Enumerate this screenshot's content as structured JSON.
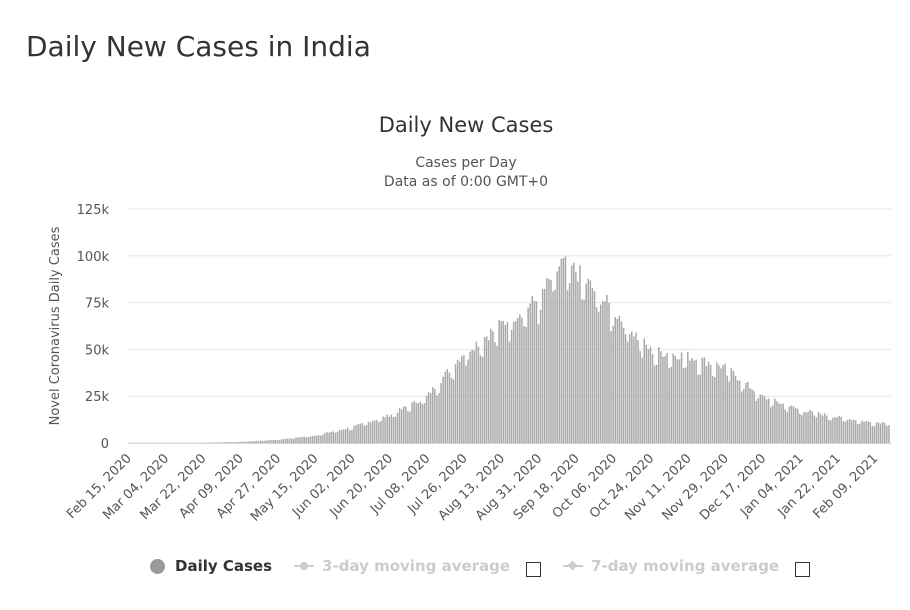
{
  "page": {
    "heading": "Daily New Cases in India"
  },
  "chart_data": {
    "type": "bar",
    "title": "Daily New Cases",
    "subtitle_lines": [
      "Cases per Day",
      "Data as of 0:00 GMT+0"
    ],
    "ylabel": "Novel Coronavirus Daily Cases",
    "xlabel": "",
    "ylim": [
      0,
      125000
    ],
    "y_ticks": [
      0,
      25000,
      50000,
      75000,
      100000,
      125000
    ],
    "y_tick_labels": [
      "0",
      "25k",
      "50k",
      "75k",
      "100k",
      "125k"
    ],
    "x_range": [
      "2020-02-15",
      "2021-02-17"
    ],
    "x_tick_labels": [
      "Feb 15, 2020",
      "Mar 04, 2020",
      "Mar 22, 2020",
      "Apr 09, 2020",
      "Apr 27, 2020",
      "May 15, 2020",
      "Jun 02, 2020",
      "Jun 20, 2020",
      "Jul 08, 2020",
      "Jul 26, 2020",
      "Aug 13, 2020",
      "Aug 31, 2020",
      "Sep 18, 2020",
      "Oct 06, 2020",
      "Oct 24, 2020",
      "Nov 11, 2020",
      "Nov 29, 2020",
      "Dec 17, 2020",
      "Jan 04, 2021",
      "Jan 22, 2021",
      "Feb 09, 2021"
    ],
    "grid": true,
    "bar_color": "#a8a8a8",
    "series": [
      {
        "name": "Daily Cases",
        "sampled_values": [
          {
            "x": "2020-03-22",
            "y": 100
          },
          {
            "x": "2020-04-09",
            "y": 600
          },
          {
            "x": "2020-04-27",
            "y": 1800
          },
          {
            "x": "2020-05-15",
            "y": 4000
          },
          {
            "x": "2020-06-02",
            "y": 8500
          },
          {
            "x": "2020-06-20",
            "y": 15000
          },
          {
            "x": "2020-07-08",
            "y": 25000
          },
          {
            "x": "2020-07-26",
            "y": 49000
          },
          {
            "x": "2020-08-13",
            "y": 64000
          },
          {
            "x": "2020-08-31",
            "y": 78000
          },
          {
            "x": "2020-09-11",
            "y": 97000
          },
          {
            "x": "2020-09-18",
            "y": 93000
          },
          {
            "x": "2020-10-06",
            "y": 72000
          },
          {
            "x": "2020-10-24",
            "y": 50000
          },
          {
            "x": "2020-11-11",
            "y": 47000
          },
          {
            "x": "2020-11-29",
            "y": 41000
          },
          {
            "x": "2020-12-17",
            "y": 25000
          },
          {
            "x": "2021-01-04",
            "y": 18000
          },
          {
            "x": "2021-01-22",
            "y": 14000
          },
          {
            "x": "2021-02-09",
            "y": 11000
          },
          {
            "x": "2021-02-17",
            "y": 11500
          }
        ]
      }
    ]
  },
  "legend": {
    "items": [
      {
        "label": "Daily Cases",
        "active": true
      },
      {
        "label": "3-day moving average",
        "active": false
      },
      {
        "label": "7-day moving average",
        "active": false
      }
    ]
  }
}
